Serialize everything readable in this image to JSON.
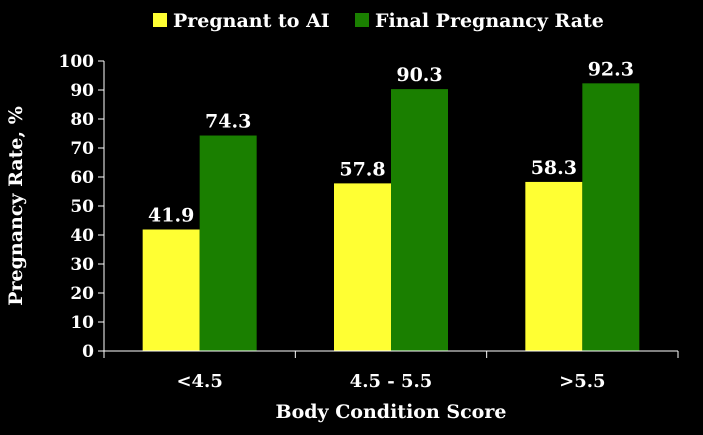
{
  "chart_data": {
    "type": "bar",
    "categories": [
      "<4.5",
      "4.5 - 5.5",
      ">5.5"
    ],
    "series": [
      {
        "name": "Pregnant to AI",
        "color": "#ffff33",
        "values": [
          41.9,
          57.8,
          58.3
        ],
        "labels": [
          "41.9",
          "57.8",
          "58.3"
        ]
      },
      {
        "name": "Final Pregnancy Rate",
        "color": "#1a7f00",
        "values": [
          74.3,
          90.3,
          92.3
        ],
        "labels": [
          "74.3",
          "90.3",
          "92.3"
        ]
      }
    ],
    "xlabel": "Body Condition Score",
    "ylabel": "Pregnancy Rate, %",
    "ylim": [
      0,
      100
    ],
    "yticks": [
      0,
      10,
      20,
      30,
      40,
      50,
      60,
      70,
      80,
      90,
      100
    ],
    "grid": false,
    "legend_position": "top",
    "background": "#000000",
    "axis_color": "#ffffff"
  }
}
